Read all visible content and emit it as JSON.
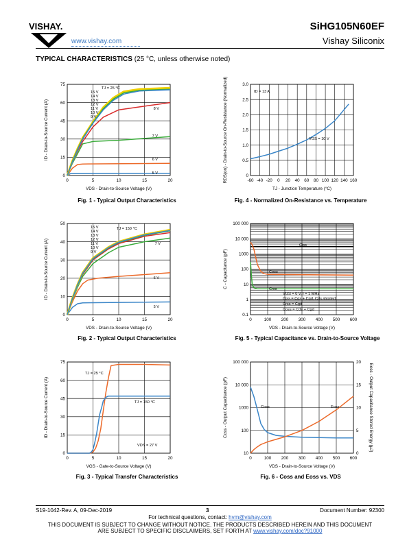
{
  "header": {
    "logo_text": "VISHAY.",
    "url": "www.vishay.com",
    "part_number": "SiHG105N60EF",
    "company": "Vishay Siliconix",
    "section_title": "TYPICAL CHARACTERISTICS",
    "section_note": "(25 °C, unless otherwise noted)"
  },
  "colors": {
    "blue": "#3b86c8",
    "green": "#3bab3b",
    "red": "#d92d2d",
    "orange": "#ec6a2a",
    "yellow": "#f0d000",
    "grid": "#000000"
  },
  "figures": [
    {
      "id": "fig1",
      "caption": "Fig. 1 - Typical Output Characteristics",
      "chart_data": {
        "type": "line",
        "xlabel": "VDS - Drain-to-Source Voltage (V)",
        "ylabel": "ID - Drain-to-Source Current (A)",
        "xlim": [
          0,
          20
        ],
        "ylim": [
          0,
          75
        ],
        "xticks": [
          0,
          5,
          10,
          15,
          20
        ],
        "yticks": [
          0,
          15,
          30,
          45,
          60,
          75
        ],
        "annotations": [
          "15 V",
          "14 V",
          "13 V",
          "12 V",
          "11 V",
          "10 V",
          "9 V",
          "TJ = 25 °C",
          "8 V",
          "7 V",
          "6 V",
          "5 V"
        ],
        "series": [
          {
            "color": "#3b86c8",
            "x": [
              0,
              0.6,
              1,
              20
            ],
            "y": [
              0,
              1.5,
              1.6,
              1.8
            ]
          },
          {
            "color": "#ec6a2a",
            "x": [
              0,
              1,
              2,
              3,
              20
            ],
            "y": [
              0,
              6,
              9,
              9.5,
              10
            ]
          },
          {
            "color": "#3bab3b",
            "x": [
              0,
              1,
              2,
              3,
              5,
              10,
              15,
              20
            ],
            "y": [
              0,
              10,
              18,
              26,
              28,
              29,
              30.5,
              32
            ]
          },
          {
            "color": "#d92d2d",
            "x": [
              0,
              1,
              2,
              3,
              5,
              7,
              10,
              15,
              20
            ],
            "y": [
              0,
              11,
              20,
              28,
              40,
              48,
              54,
              57,
              60
            ]
          },
          {
            "color": "#f0d000",
            "x": [
              0,
              1,
              2,
              3,
              5,
              7,
              9,
              11,
              14,
              20
            ],
            "y": [
              0,
              12,
              22,
              31,
              44,
              56,
              64,
              69,
              71,
              72
            ]
          },
          {
            "color": "#3bab3b",
            "x": [
              0,
              1,
              2,
              3,
              5,
              7,
              9,
              11,
              14,
              20
            ],
            "y": [
              0,
              11.5,
              21.5,
              30.5,
              43.5,
              55,
              63,
              68,
              70,
              71
            ]
          },
          {
            "color": "#3b86c8",
            "x": [
              0,
              1,
              2,
              3,
              5,
              7,
              9,
              11,
              14,
              20
            ],
            "y": [
              0,
              11,
              21,
              30,
              43,
              54,
              62,
              67,
              69.5,
              70.5
            ]
          }
        ]
      }
    },
    {
      "id": "fig2",
      "caption": "Fig. 2 - Typical Output Characteristics",
      "chart_data": {
        "type": "line",
        "xlabel": "VDS - Drain-to-Source Voltage (V)",
        "ylabel": "ID - Drain-to-Source Current (A)",
        "xlim": [
          0,
          20
        ],
        "ylim": [
          0,
          50
        ],
        "xticks": [
          0,
          5,
          10,
          15,
          20
        ],
        "yticks": [
          0,
          10,
          20,
          30,
          40,
          50
        ],
        "annotations": [
          "15 V",
          "14 V",
          "13 V",
          "12 V",
          "11 V",
          "10 V",
          "9 V",
          "TJ = 150 °C",
          "7 V",
          "6 V",
          "5 V"
        ],
        "series": [
          {
            "color": "#3b86c8",
            "x": [
              0,
              1,
              2,
              3,
              20
            ],
            "y": [
              0,
              4,
              6,
              6.5,
              7
            ]
          },
          {
            "color": "#ec6a2a",
            "x": [
              0,
              1,
              2,
              3,
              4,
              6,
              10,
              15,
              20
            ],
            "y": [
              0,
              7,
              13,
              17,
              19,
              20,
              21,
              22,
              23
            ]
          },
          {
            "color": "#3bab3b",
            "x": [
              0,
              1,
              2,
              3,
              5,
              8,
              10,
              15,
              20
            ],
            "y": [
              0,
              8,
              15,
              21,
              28,
              34,
              37,
              40,
              42
            ]
          },
          {
            "color": "#d92d2d",
            "x": [
              0,
              1,
              2,
              3,
              5,
              8,
              10,
              15,
              20
            ],
            "y": [
              0,
              8.5,
              16,
              22,
              30,
              36,
              39,
              43,
              45
            ]
          },
          {
            "color": "#f0d000",
            "x": [
              0,
              1,
              2,
              3,
              5,
              8,
              10,
              15,
              20
            ],
            "y": [
              0,
              9,
              16.5,
              23,
              31,
              37,
              40,
              44,
              46.5
            ]
          },
          {
            "color": "#3bab3b",
            "x": [
              0,
              1,
              2,
              3,
              5,
              8,
              10,
              15,
              20
            ],
            "y": [
              0,
              8.7,
              16.2,
              22.6,
              30.5,
              36.5,
              39.5,
              43.5,
              46
            ]
          },
          {
            "color": "#3b86c8",
            "x": [
              0,
              1,
              2,
              3,
              5,
              8,
              10,
              15,
              20
            ],
            "y": [
              0,
              8.8,
              16.4,
              22.8,
              30.8,
              36.8,
              39.8,
              43.8,
              46.2
            ]
          }
        ]
      }
    },
    {
      "id": "fig3",
      "caption": "Fig. 3 - Typical Transfer Characteristics",
      "chart_data": {
        "type": "line",
        "xlabel": "VGS - Gate-to-Source Voltage (V)",
        "ylabel": "ID - Drain-to-Source Current (A)",
        "xlim": [
          0,
          20
        ],
        "ylim": [
          0,
          75
        ],
        "xticks": [
          0,
          5,
          10,
          15,
          20
        ],
        "yticks": [
          0,
          15,
          30,
          45,
          60,
          75
        ],
        "annotations": [
          "TJ = 25 °C",
          "TJ = 150 °C",
          "VDS = 27 V"
        ],
        "series": [
          {
            "color": "#ec6a2a",
            "x": [
              0,
              4.5,
              5,
              5.5,
              6,
              6.5,
              7,
              7.5,
              8,
              8.5,
              10,
              15,
              20
            ],
            "y": [
              0,
              0,
              1,
              4,
              10,
              20,
              35,
              50,
              62,
              72,
              73,
              73,
              72.5
            ]
          },
          {
            "color": "#3b86c8",
            "x": [
              0,
              4.3,
              4.7,
              5,
              5.3,
              5.7,
              6,
              6.3,
              6.7,
              7,
              7.5,
              8,
              10,
              15,
              20
            ],
            "y": [
              0,
              0,
              1,
              3,
              8,
              16,
              24,
              32,
              38,
              43,
              46,
              47,
              47,
              47,
              47
            ]
          }
        ]
      }
    },
    {
      "id": "fig4",
      "caption": "Fig. 4 - Normalized On-Resistance vs. Temperature",
      "chart_data": {
        "type": "line",
        "xlabel": "TJ - Junction Temperature (°C)",
        "ylabel": "RDS(on) - Drain-to-Source On-Resistance (Normalized)",
        "xlim": [
          -60,
          160
        ],
        "ylim": [
          0,
          3.0
        ],
        "xticks": [
          -60,
          -40,
          -20,
          0,
          20,
          40,
          60,
          80,
          100,
          120,
          140,
          160
        ],
        "yticks": [
          0,
          0.5,
          1.0,
          1.5,
          2.0,
          2.5,
          3.0
        ],
        "ytick_labels": [
          "0",
          "0.5",
          "1.0",
          "1.5",
          "2.0",
          "2.5",
          "3.0"
        ],
        "annotations": [
          "ID = 13 A",
          "VGS = 10 V"
        ],
        "series": [
          {
            "color": "#3b86c8",
            "x": [
              -60,
              -40,
              -20,
              0,
              20,
              40,
              60,
              80,
              100,
              120,
              150
            ],
            "y": [
              0.55,
              0.62,
              0.7,
              0.8,
              0.9,
              1.03,
              1.17,
              1.35,
              1.55,
              1.8,
              2.35
            ]
          }
        ]
      }
    },
    {
      "id": "fig5",
      "caption": "Fig. 5 - Typical Capacitance vs. Drain-to-Source Voltage",
      "chart_data": {
        "type": "line",
        "log_y": true,
        "xlabel": "VDS - Drain-to-Source Voltage (V)",
        "ylabel": "C - Capacitance (pF)",
        "xlim": [
          0,
          600
        ],
        "ylim": [
          0.1,
          100000
        ],
        "xticks": [
          0,
          100,
          200,
          300,
          400,
          500,
          600
        ],
        "yticks": [
          0.1,
          1,
          10,
          100,
          1000,
          10000,
          100000
        ],
        "ytick_labels": [
          "0.1",
          "1",
          "10",
          "100",
          "1000",
          "10 000",
          "100 000"
        ],
        "annotations": [
          "Ciss",
          "Coss",
          "Crss",
          "VGS = 0 V, f = 1 MHz",
          "Ciss = Cgs + Cgd, Cds shorted",
          "Crss = Cgd",
          "Coss = Cds + Cgd"
        ],
        "series": [
          {
            "color": "#000000",
            "x": [
              0,
              100,
              200,
              300,
              400,
              500,
              600
            ],
            "y": [
              3000,
              3000,
              3000,
              3000,
              3000,
              3000,
              3000
            ]
          },
          {
            "color": "#ec6a2a",
            "x": [
              0,
              10,
              20,
              40,
              60,
              80,
              100,
              600
            ],
            "y": [
              6000,
              4000,
              2000,
              200,
              70,
              50,
              45,
              40
            ]
          },
          {
            "color": "#3bab3b",
            "x": [
              0,
              5,
              10,
              20,
              40,
              60,
              600
            ],
            "y": [
              300,
              40,
              10,
              6,
              5,
              5,
              5
            ]
          }
        ]
      }
    },
    {
      "id": "fig6",
      "caption": "Fig. 6 - Coss and Eoss vs. VDS",
      "chart_data": {
        "type": "line",
        "log_y": true,
        "xlabel": "VDS - Drain-to-Source Voltage (V)",
        "ylabel": "Coss - Output Capacitance (pF)",
        "y2label": "Eoss - Output Capacitance Stored Energy (µJ)",
        "xlim": [
          0,
          600
        ],
        "ylim": [
          10,
          100000
        ],
        "y2lim": [
          0,
          20
        ],
        "xticks": [
          0,
          100,
          200,
          300,
          400,
          500,
          600
        ],
        "yticks": [
          10,
          100,
          1000,
          10000,
          100000
        ],
        "ytick_labels": [
          "10",
          "100",
          "1000",
          "10 000",
          "100 000"
        ],
        "y2ticks": [
          0,
          5,
          10,
          15,
          20
        ],
        "annotations": [
          "Coss",
          "Eoss"
        ],
        "series": [
          {
            "color": "#3b86c8",
            "axis": "left",
            "x": [
              0,
              20,
              40,
              60,
              80,
              100,
              150,
              200,
              300,
              400,
              500,
              600
            ],
            "y": [
              8000,
              3000,
              800,
              200,
              110,
              80,
              60,
              55,
              50,
              48,
              47,
              47
            ]
          },
          {
            "color": "#ec6a2a",
            "axis": "right",
            "x": [
              0,
              20,
              40,
              60,
              100,
              200,
              300,
              400,
              500,
              600
            ],
            "y": [
              0,
              0.8,
              1.4,
              1.9,
              2.5,
              3.6,
              5,
              7,
              9.5,
              12.5
            ]
          }
        ]
      }
    }
  ],
  "footer": {
    "doc_rev": "S19-1042-Rev. A, 09-Dec-2019",
    "page": "3",
    "doc_number": "Document Number: 92300",
    "tech_prefix": "For technical questions, contact: ",
    "tech_email": "hvm@vishay.com",
    "disclaimer_line1": "THIS DOCUMENT IS SUBJECT TO CHANGE WITHOUT NOTICE. THE PRODUCTS DESCRIBED HEREIN AND THIS DOCUMENT",
    "disclaimer_line2_prefix": "ARE SUBJECT TO SPECIFIC DISCLAIMERS, SET FORTH AT ",
    "disclaimer_link": "www.vishay.com/doc?91000"
  }
}
